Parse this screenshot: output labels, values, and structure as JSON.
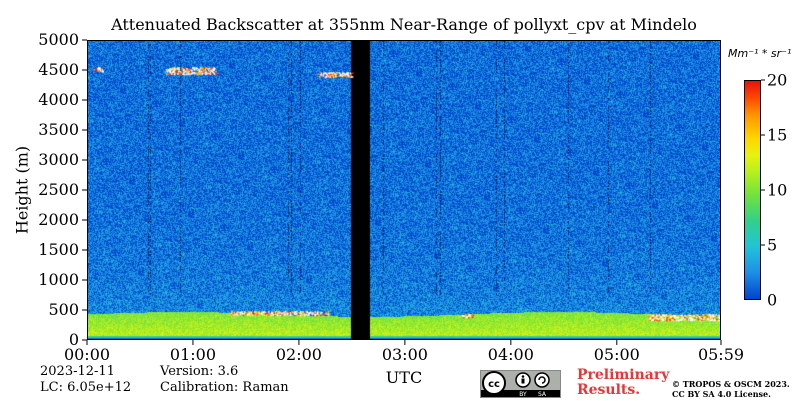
{
  "chart_data": {
    "type": "heatmap",
    "title": "Attenuated Backscatter at 355nm Near-Range of pollyxt_cpv at Mindelo",
    "xlabel": "UTC",
    "ylabel": "Height (m)",
    "x_ticks": [
      "00:00",
      "01:00",
      "02:00",
      "03:00",
      "04:00",
      "05:00",
      "05:59"
    ],
    "x_range": [
      "00:00",
      "05:59"
    ],
    "y_ticks": [
      0,
      500,
      1000,
      1500,
      2000,
      2500,
      3000,
      3500,
      4000,
      4500,
      5000
    ],
    "ylim": [
      0,
      5000
    ],
    "colorbar": {
      "label": "Mm⁻¹ * sr⁻¹",
      "ticks": [
        0,
        5,
        10,
        15,
        20
      ],
      "range": [
        0,
        20
      ],
      "colormap": "jet-like (blue → green → yellow → red)"
    },
    "features": [
      {
        "description": "no data gap",
        "x_start": "02:29",
        "x_end": "02:40"
      },
      {
        "description": "high backscatter layer near surface",
        "height_range_m": [
          0,
          500
        ]
      },
      {
        "description": "saturated / cloud returns",
        "times": [
          "00:45",
          "02:10",
          "03:30",
          "05:30"
        ],
        "height_m": 450
      },
      {
        "description": "elevated cloud returns",
        "times": [
          "00:40",
          "02:15",
          "00:05"
        ],
        "height_m": 4500
      }
    ],
    "grid": false
  },
  "meta": {
    "date": "2023-12-11",
    "lc": "LC: 6.05e+12",
    "version": "Version: 3.6",
    "calibration": "Calibration: Raman"
  },
  "footer": {
    "preliminary": "Preliminary",
    "results": "Results.",
    "copyright_line1": "© TROPOS & OSCM 2023.",
    "copyright_line2": "CC BY SA 4.0 License.",
    "cc_by": "BY",
    "cc_sa": "SA"
  }
}
